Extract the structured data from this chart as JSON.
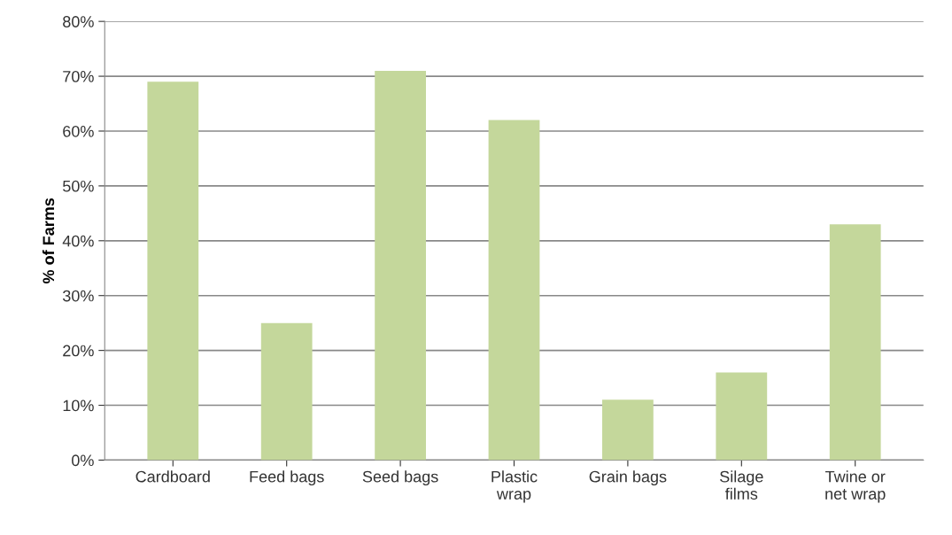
{
  "chart_data": {
    "type": "bar",
    "ylabel": "% of Farms",
    "categories": [
      "Cardboard",
      "Feed bags",
      "Seed bags",
      "Plastic\nwrap",
      "Grain bags",
      "Silage\nfilms",
      "Twine or\nnet wrap"
    ],
    "values": [
      69,
      25,
      71,
      62,
      11,
      16,
      43
    ],
    "color": "#c4d79b",
    "ylim": [
      0,
      80
    ],
    "yticks": [
      {
        "value": 0,
        "label": "0%"
      },
      {
        "value": 10,
        "label": "10%"
      },
      {
        "value": 20,
        "label": "20%"
      },
      {
        "value": 30,
        "label": "30%"
      },
      {
        "value": 40,
        "label": "40%"
      },
      {
        "value": 50,
        "label": "50%"
      },
      {
        "value": 60,
        "label": "60%"
      },
      {
        "value": 70,
        "label": "70%"
      },
      {
        "value": 80,
        "label": "80%"
      }
    ],
    "grid": "y"
  }
}
